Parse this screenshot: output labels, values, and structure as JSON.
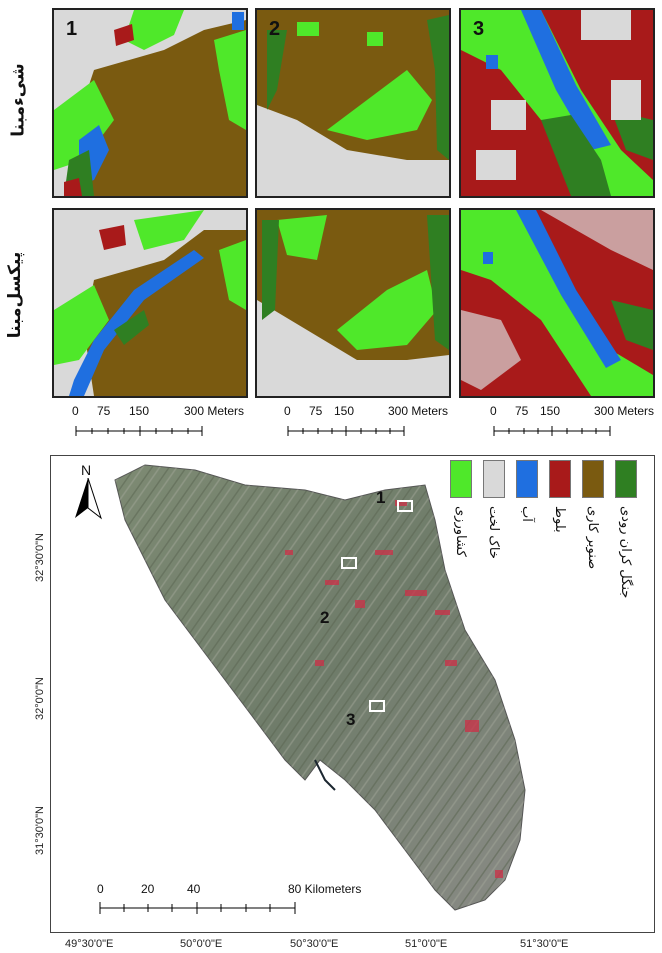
{
  "row_labels": [
    "شیءمبنا",
    "پیکسل‌مبنا"
  ],
  "panel_numbers": [
    "1",
    "2",
    "3"
  ],
  "scale_small": {
    "ticks": [
      "0",
      "75",
      "150",
      "300 Meters"
    ]
  },
  "legend": [
    {
      "label": "کشاورزی",
      "color": "#4fe82a"
    },
    {
      "label": "خاک لخت",
      "color": "#d9d9d9"
    },
    {
      "label": "آب",
      "color": "#1f6fe0"
    },
    {
      "label": "بلوط",
      "color": "#a81a1a"
    },
    {
      "label": "صنوبر کاری",
      "color": "#7a5a10"
    },
    {
      "label": "جنگل کران رودی",
      "color": "#2f7f22"
    }
  ],
  "north": "N",
  "lat_labels": [
    "32°30'0\"N",
    "32°0'0\"N",
    "31°30'0\"N"
  ],
  "lon_labels": [
    "49°30'0\"E",
    "50°0'0\"E",
    "50°30'0\"E",
    "51°0'0\"E",
    "51°30'0\"E"
  ],
  "big_scale": {
    "ticks": [
      "0",
      "20",
      "40",
      "80 Kilometers"
    ]
  },
  "sites": [
    "1",
    "2",
    "3"
  ]
}
